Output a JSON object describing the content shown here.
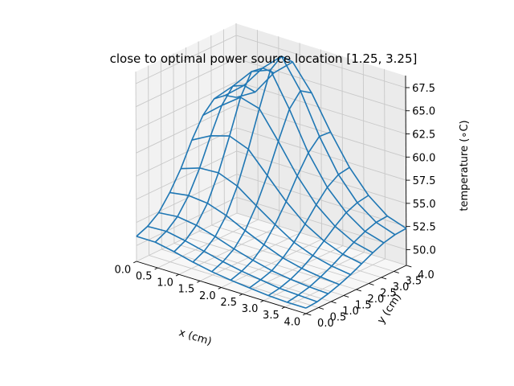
{
  "chart_data": {
    "type": "wireframe-3d",
    "title": "close to optimal power source location [1.25, 3.25]",
    "xlabel": "x (cm)",
    "ylabel": "y (cm)",
    "zlabel": "temperature (∘C)",
    "xlim": [
      0,
      4
    ],
    "ylim": [
      0,
      4
    ],
    "zlim": [
      48.3,
      68.8
    ],
    "xticks": [
      "0.0",
      "0.5",
      "1.0",
      "1.5",
      "2.0",
      "2.5",
      "3.0",
      "3.5",
      "4.0"
    ],
    "yticks": [
      "0.0",
      "0.5",
      "1.0",
      "1.5",
      "2.0",
      "2.5",
      "3.0",
      "3.5",
      "4.0"
    ],
    "zticks": [
      "50.0",
      "52.5",
      "55.0",
      "57.5",
      "60.0",
      "62.5",
      "65.0",
      "67.5"
    ],
    "grid": true,
    "color": "#1f77b4",
    "x": [
      0,
      0.4444,
      0.8889,
      1.3333,
      1.7778,
      2.2222,
      2.6667,
      3.1111,
      3.5556,
      4.0
    ],
    "y": [
      0,
      0.4444,
      0.8889,
      1.3333,
      1.7778,
      2.2222,
      2.6667,
      3.1111,
      3.5556,
      4.0
    ],
    "z_rows_note_x_index_outer": "z[i][j] = temperature at x[i], y[j]",
    "z": [
      [
        51.0,
        51.5,
        52.4,
        54.0,
        56.0,
        58.5,
        60.6,
        61.8,
        61.6,
        60.8
      ],
      [
        51.0,
        51.6,
        52.6,
        54.3,
        56.7,
        59.6,
        62.3,
        63.8,
        63.3,
        62.0
      ],
      [
        50.6,
        51.2,
        52.3,
        54.1,
        56.8,
        60.2,
        63.8,
        66.0,
        65.8,
        64.7
      ],
      [
        50.1,
        50.7,
        51.7,
        53.4,
        56.0,
        59.4,
        63.2,
        66.8,
        67.7,
        66.5
      ],
      [
        49.7,
        50.2,
        51.0,
        52.4,
        54.5,
        57.2,
        60.3,
        63.2,
        64.6,
        63.8
      ],
      [
        49.4,
        49.8,
        50.4,
        51.5,
        53.1,
        55.0,
        57.2,
        59.1,
        60.3,
        60.2
      ],
      [
        49.2,
        49.5,
        49.9,
        50.7,
        51.8,
        53.2,
        54.7,
        56.0,
        56.8,
        57.0
      ],
      [
        49.0,
        49.2,
        49.6,
        50.2,
        51.0,
        52.0,
        53.0,
        53.9,
        54.4,
        54.6
      ],
      [
        48.9,
        49.1,
        49.4,
        49.9,
        50.5,
        51.2,
        51.9,
        52.5,
        52.9,
        53.0
      ],
      [
        48.9,
        49.0,
        49.3,
        49.7,
        50.2,
        50.8,
        51.4,
        51.9,
        52.2,
        52.3
      ]
    ]
  }
}
